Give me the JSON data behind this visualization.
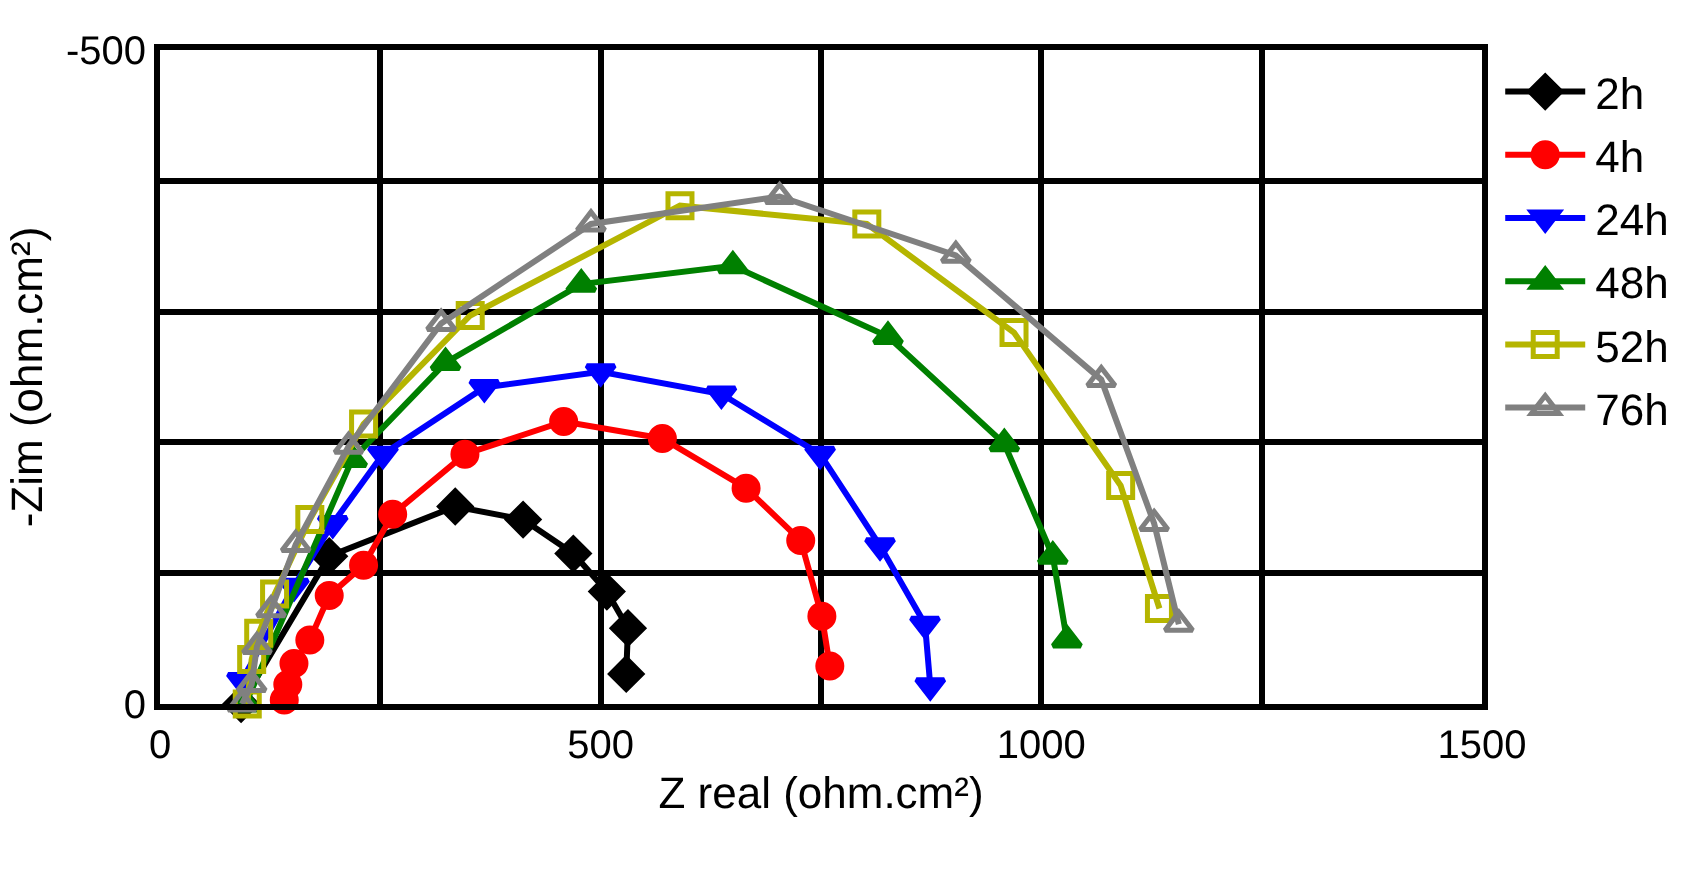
{
  "chart_data": {
    "type": "line",
    "xlabel": "Z real (ohm.cm²)",
    "ylabel": "-Zim (ohm.cm²)",
    "xlim": [
      0,
      1500
    ],
    "ylim": [
      0,
      -500
    ],
    "xticks": [
      0,
      {
        "value": 250,
        "label": null
      },
      500,
      {
        "value": 750,
        "label": null
      },
      1000,
      {
        "value": 1250,
        "label": null
      },
      1500
    ],
    "yticks": [
      0,
      {
        "value": -100,
        "label": null
      },
      {
        "value": -200,
        "label": null
      },
      {
        "value": -300,
        "label": null
      },
      {
        "value": -400,
        "label": null
      },
      -500
    ],
    "grid": true,
    "legend": "right",
    "line_style": "solid",
    "series": [
      {
        "name": "2h",
        "color": "#000000",
        "marker": "diamond",
        "x": [
          92,
          192,
          335,
          412,
          469,
          507,
          531,
          529
        ],
        "values": [
          0,
          -113,
          -151,
          -141,
          -115,
          -86,
          -58,
          -23
        ]
      },
      {
        "name": "4h",
        "color": "#ff0000",
        "marker": "circle",
        "x": [
          141,
          145,
          152,
          170,
          192,
          231,
          264,
          346,
          458,
          570,
          665,
          727,
          751,
          760
        ],
        "values": [
          -3,
          -15,
          -31,
          -49,
          -83,
          -106,
          -145,
          -191,
          -216,
          -203,
          -165,
          -125,
          -67,
          -29
        ]
      },
      {
        "name": "24h",
        "color": "#0000ff",
        "marker": "triangle-down",
        "x": [
          93,
          152,
          196,
          253,
          368,
          500,
          637,
          749,
          817,
          868,
          874
        ],
        "values": [
          -18,
          -90,
          -138,
          -191,
          -242,
          -254,
          -237,
          -191,
          -121,
          -61,
          -14
        ]
      },
      {
        "name": "48h",
        "color": "#008000",
        "marker": "triangle",
        "x": [
          97,
          218,
          324,
          478,
          650,
          826,
          958,
          1013,
          1029
        ],
        "values": [
          0,
          -187,
          -261,
          -321,
          -335,
          -281,
          -199,
          -113,
          -49
        ]
      },
      {
        "name": "52h",
        "color": "#b5b500",
        "marker": "square-open",
        "x": [
          99,
          104,
          112,
          130,
          170,
          231,
          352,
          590,
          802,
          969,
          1090,
          1134
        ],
        "values": [
          0,
          -34,
          -54,
          -84,
          -141,
          -214,
          -297,
          -381,
          -367,
          -284,
          -167,
          -73
        ]
      },
      {
        "name": "76h",
        "color": "#808080",
        "marker": "triangle-open",
        "x": [
          93,
          104,
          110,
          126,
          154,
          214,
          319,
          489,
          703,
          903,
          1068,
          1128,
          1156
        ],
        "values": [
          0,
          -15,
          -44,
          -72,
          -122,
          -197,
          -291,
          -367,
          -388,
          -343,
          -248,
          -138,
          -61
        ]
      }
    ]
  }
}
